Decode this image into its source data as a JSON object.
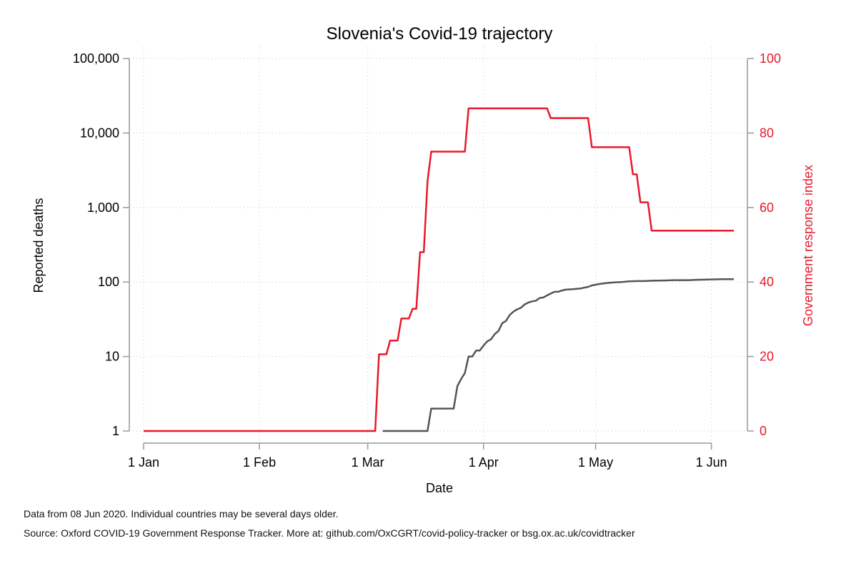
{
  "chart_data": {
    "type": "line",
    "title": "Slovenia's Covid-19 trajectory",
    "xlabel": "Date",
    "ylabel_left": "Reported deaths",
    "ylabel_right": "Government response index",
    "x_ticks": [
      "1 Jan",
      "1 Feb",
      "1 Mar",
      "1 Apr",
      "1 May",
      "1 Jun"
    ],
    "x_tick_days": [
      0,
      31,
      60,
      91,
      121,
      152
    ],
    "x_tick_dates": [
      "2020-01-01",
      "2020-02-01",
      "2020-03-01",
      "2020-04-01",
      "2020-05-01",
      "2020-06-01"
    ],
    "x_range": [
      "2020-01-01",
      "2020-06-07"
    ],
    "y_left": {
      "scale": "log",
      "range": [
        1,
        100000
      ],
      "ticks": [
        1,
        10,
        100,
        1000,
        10000,
        100000
      ],
      "tick_labels": [
        "1",
        "10",
        "100",
        "1,000",
        "10,000",
        "100,000"
      ]
    },
    "y_right": {
      "scale": "linear",
      "range": [
        0,
        100
      ],
      "ticks": [
        0,
        20,
        40,
        60,
        80,
        100
      ],
      "tick_labels": [
        "0",
        "20",
        "40",
        "60",
        "80",
        "100"
      ]
    },
    "grid": true,
    "series": [
      {
        "axis": "right",
        "color": "#e8192c",
        "step": true,
        "points": [
          [
            "2020-01-01",
            0
          ],
          [
            "2020-03-03",
            0
          ],
          [
            "2020-03-04",
            20.6
          ],
          [
            "2020-03-06",
            20.6
          ],
          [
            "2020-03-07",
            24.3
          ],
          [
            "2020-03-09",
            24.3
          ],
          [
            "2020-03-10",
            30.2
          ],
          [
            "2020-03-12",
            30.2
          ],
          [
            "2020-03-13",
            32.8
          ],
          [
            "2020-03-14",
            32.8
          ],
          [
            "2020-03-15",
            48
          ],
          [
            "2020-03-16",
            48
          ],
          [
            "2020-03-17",
            67
          ],
          [
            "2020-03-18",
            75
          ],
          [
            "2020-03-27",
            75
          ],
          [
            "2020-03-28",
            86.6
          ],
          [
            "2020-04-18",
            86.6
          ],
          [
            "2020-04-19",
            84
          ],
          [
            "2020-04-29",
            84
          ],
          [
            "2020-04-30",
            76.2
          ],
          [
            "2020-05-10",
            76.2
          ],
          [
            "2020-05-11",
            68.9
          ],
          [
            "2020-05-12",
            68.9
          ],
          [
            "2020-05-13",
            61.4
          ],
          [
            "2020-05-15",
            61.4
          ],
          [
            "2020-05-16",
            53.8
          ],
          [
            "2020-06-07",
            53.8
          ]
        ]
      },
      {
        "axis": "left",
        "color": "#555555",
        "step": false,
        "points": [
          [
            "2020-03-05",
            1
          ],
          [
            "2020-03-17",
            1
          ],
          [
            "2020-03-18",
            2
          ],
          [
            "2020-03-24",
            2
          ],
          [
            "2020-03-25",
            4
          ],
          [
            "2020-03-26",
            5
          ],
          [
            "2020-03-27",
            6
          ],
          [
            "2020-03-28",
            10
          ],
          [
            "2020-03-29",
            10
          ],
          [
            "2020-03-30",
            12
          ],
          [
            "2020-03-31",
            12
          ],
          [
            "2020-04-01",
            14
          ],
          [
            "2020-04-02",
            16
          ],
          [
            "2020-04-03",
            17
          ],
          [
            "2020-04-04",
            20
          ],
          [
            "2020-04-05",
            22
          ],
          [
            "2020-04-06",
            28
          ],
          [
            "2020-04-07",
            30
          ],
          [
            "2020-04-08",
            36
          ],
          [
            "2020-04-09",
            40
          ],
          [
            "2020-04-10",
            43
          ],
          [
            "2020-04-11",
            45
          ],
          [
            "2020-04-12",
            50
          ],
          [
            "2020-04-13",
            53
          ],
          [
            "2020-04-14",
            55
          ],
          [
            "2020-04-15",
            56
          ],
          [
            "2020-04-16",
            61
          ],
          [
            "2020-04-17",
            62
          ],
          [
            "2020-04-18",
            66
          ],
          [
            "2020-04-19",
            70
          ],
          [
            "2020-04-20",
            74
          ],
          [
            "2020-04-21",
            74
          ],
          [
            "2020-04-22",
            77
          ],
          [
            "2020-04-23",
            79
          ],
          [
            "2020-04-25",
            80
          ],
          [
            "2020-04-27",
            82
          ],
          [
            "2020-04-29",
            86
          ],
          [
            "2020-04-30",
            90
          ],
          [
            "2020-05-02",
            94
          ],
          [
            "2020-05-04",
            97
          ],
          [
            "2020-05-06",
            99
          ],
          [
            "2020-05-08",
            100
          ],
          [
            "2020-05-10",
            102
          ],
          [
            "2020-05-12",
            103
          ],
          [
            "2020-05-14",
            103
          ],
          [
            "2020-05-16",
            104
          ],
          [
            "2020-05-20",
            105
          ],
          [
            "2020-05-22",
            106
          ],
          [
            "2020-05-26",
            106
          ],
          [
            "2020-05-28",
            107
          ],
          [
            "2020-05-31",
            108
          ],
          [
            "2020-06-04",
            109
          ],
          [
            "2020-06-07",
            109
          ]
        ]
      }
    ]
  },
  "footnotes": {
    "line1": "Data from 08 Jun 2020. Individual countries may be several days older.",
    "line2": "Source: Oxford COVID-19 Government Response Tracker. More at: github.com/OxCGRT/covid-policy-tracker or bsg.ox.ac.uk/covidtracker"
  }
}
